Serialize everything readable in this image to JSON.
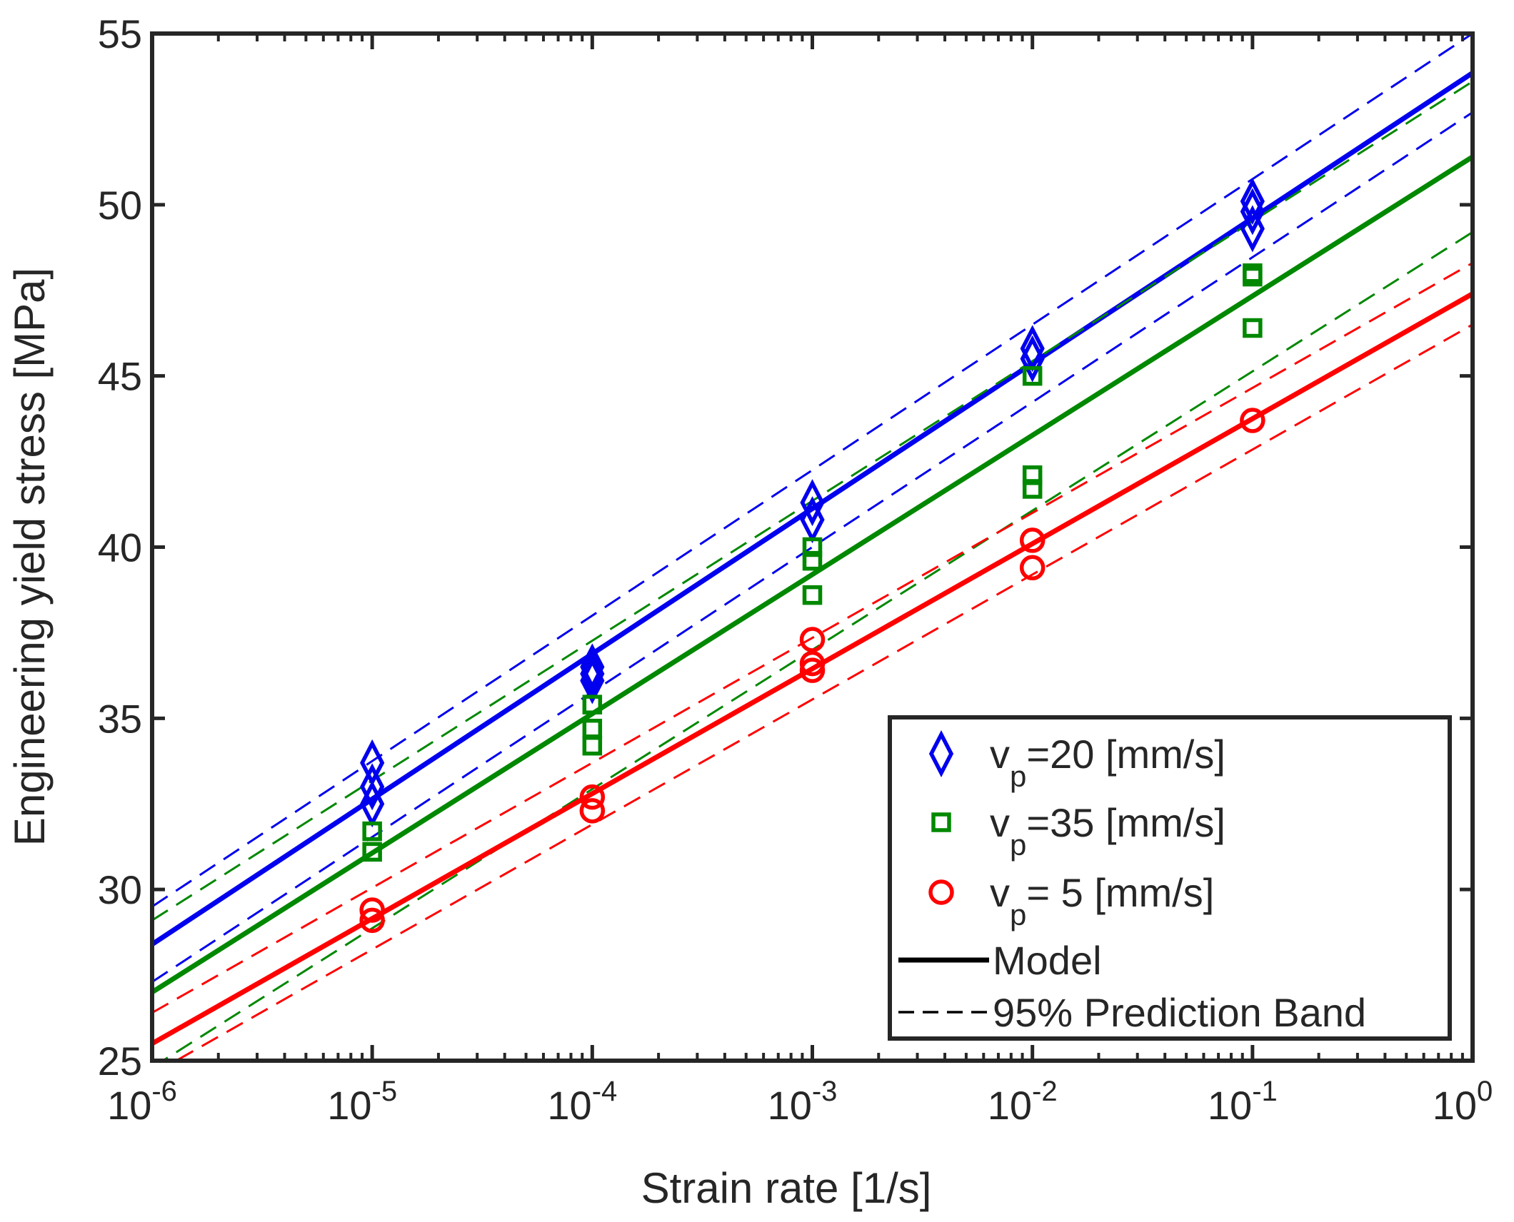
{
  "chart_data": {
    "type": "scatter",
    "title": "",
    "xlabel": "Strain rate [1/s]",
    "ylabel": "Engineering yield stress [MPa]",
    "xscale": "log",
    "xlim": [
      1e-06,
      1
    ],
    "ylim": [
      25,
      55
    ],
    "xticks": [
      {
        "value": 1e-06,
        "base": "10",
        "exp": "-6"
      },
      {
        "value": 1e-05,
        "base": "10",
        "exp": "-5"
      },
      {
        "value": 0.0001,
        "base": "10",
        "exp": "-4"
      },
      {
        "value": 0.001,
        "base": "10",
        "exp": "-3"
      },
      {
        "value": 0.01,
        "base": "10",
        "exp": "-2"
      },
      {
        "value": 0.1,
        "base": "10",
        "exp": "-1"
      },
      {
        "value": 1,
        "base": "10",
        "exp": "0"
      }
    ],
    "yticks": [
      {
        "value": 25,
        "label": "25"
      },
      {
        "value": 30,
        "label": "30"
      },
      {
        "value": 35,
        "label": "35"
      },
      {
        "value": 40,
        "label": "40"
      },
      {
        "value": 45,
        "label": "45"
      },
      {
        "value": 50,
        "label": "50"
      },
      {
        "value": 55,
        "label": "55"
      }
    ],
    "grid": false,
    "legend_position": "bottom-right",
    "series": [
      {
        "id": "vp20",
        "label_main": "v",
        "label_sub": "p",
        "label_rest": "=20 [mm/s]",
        "color": "#0000ee",
        "marker": "diamond",
        "points": [
          [
            1e-05,
            32.5
          ],
          [
            1e-05,
            33.0
          ],
          [
            1e-05,
            33.7
          ],
          [
            0.0001,
            36.1
          ],
          [
            0.0001,
            36.3
          ],
          [
            0.0001,
            36.5
          ],
          [
            0.001,
            40.8
          ],
          [
            0.001,
            41.3
          ],
          [
            0.01,
            45.5
          ],
          [
            0.01,
            45.8
          ],
          [
            0.1,
            49.3
          ],
          [
            0.1,
            49.8
          ],
          [
            0.1,
            50.1
          ]
        ],
        "model": [
          [
            1e-06,
            28.4
          ],
          [
            1,
            53.85
          ]
        ],
        "band_upper": [
          [
            1e-06,
            29.5
          ],
          [
            1,
            55.0
          ]
        ],
        "band_lower": [
          [
            1e-06,
            27.3
          ],
          [
            1,
            52.7
          ]
        ]
      },
      {
        "id": "vp35",
        "label_main": "v",
        "label_sub": "p",
        "label_rest": "=35 [mm/s]",
        "color": "#008800",
        "marker": "square",
        "points": [
          [
            1e-05,
            31.1
          ],
          [
            1e-05,
            31.7
          ],
          [
            0.0001,
            34.2
          ],
          [
            0.0001,
            34.7
          ],
          [
            0.0001,
            35.4
          ],
          [
            0.001,
            38.6
          ],
          [
            0.001,
            39.6
          ],
          [
            0.001,
            40.0
          ],
          [
            0.01,
            41.7
          ],
          [
            0.01,
            42.1
          ],
          [
            0.01,
            45.0
          ],
          [
            0.1,
            46.4
          ],
          [
            0.1,
            47.9
          ],
          [
            0.1,
            48.0
          ]
        ],
        "model": [
          [
            1e-06,
            27.0
          ],
          [
            1,
            51.4
          ]
        ],
        "band_upper": [
          [
            1e-06,
            29.1
          ],
          [
            1,
            53.6
          ]
        ],
        "band_lower": [
          [
            1e-06,
            24.8
          ],
          [
            1,
            49.2
          ]
        ]
      },
      {
        "id": "vp5",
        "label_main": "v",
        "label_sub": "p",
        "label_rest": "=  5 [mm/s]",
        "color": "#ff0000",
        "marker": "circle",
        "points": [
          [
            1e-05,
            29.1
          ],
          [
            1e-05,
            29.4
          ],
          [
            0.0001,
            32.3
          ],
          [
            0.0001,
            32.7
          ],
          [
            0.001,
            36.4
          ],
          [
            0.001,
            36.6
          ],
          [
            0.001,
            37.3
          ],
          [
            0.01,
            39.4
          ],
          [
            0.01,
            40.2
          ],
          [
            0.1,
            43.7
          ]
        ],
        "model": [
          [
            1e-06,
            25.5
          ],
          [
            1,
            47.4
          ]
        ],
        "band_upper": [
          [
            1e-06,
            26.4
          ],
          [
            1,
            48.3
          ]
        ],
        "band_lower": [
          [
            1e-06,
            24.6
          ],
          [
            1,
            46.5
          ]
        ]
      }
    ],
    "legend_extra": [
      {
        "id": "model",
        "label": "Model",
        "style": "solid",
        "color": "#000000"
      },
      {
        "id": "band",
        "label": "95% Prediction Band",
        "style": "dashed",
        "color": "#000000"
      }
    ]
  }
}
